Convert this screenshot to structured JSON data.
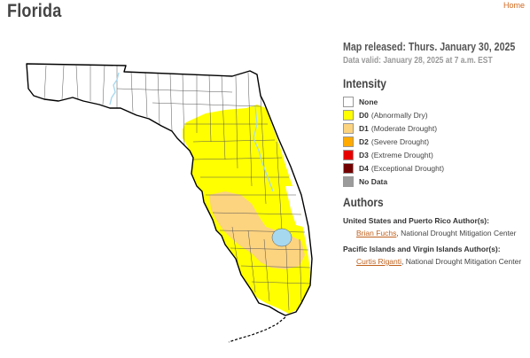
{
  "page": {
    "title": "Florida",
    "home_link": "Home"
  },
  "map": {
    "released": "Map released: Thurs. January 30, 2025",
    "valid": "Data valid: January 28, 2025 at 7 a.m. EST"
  },
  "intensity": {
    "heading": "Intensity",
    "items": [
      {
        "code": "None",
        "desc": "",
        "color": "#ffffff"
      },
      {
        "code": "D0",
        "desc": "(Abnormally Dry)",
        "color": "#ffff00"
      },
      {
        "code": "D1",
        "desc": "(Moderate Drought)",
        "color": "#fcd37f"
      },
      {
        "code": "D2",
        "desc": "(Severe Drought)",
        "color": "#ffaa00"
      },
      {
        "code": "D3",
        "desc": "(Extreme Drought)",
        "color": "#e60000"
      },
      {
        "code": "D4",
        "desc": "(Exceptional Drought)",
        "color": "#730000"
      },
      {
        "code": "No Data",
        "desc": "",
        "color": "#9b9b9b"
      }
    ]
  },
  "authors": {
    "heading": "Authors",
    "groups": [
      {
        "region": "United States and Puerto Rico Author(s):",
        "name": "Brian Fuchs",
        "org": ", National Drought Mitigation Center"
      },
      {
        "region": "Pacific Islands and Virgin Islands Author(s):",
        "name": "Curtis Riganti",
        "org": ", National Drought Mitigation Center"
      }
    ]
  },
  "colors": {
    "water": "#a6d8f0",
    "county_line": "#555555",
    "outline": "#000000"
  }
}
